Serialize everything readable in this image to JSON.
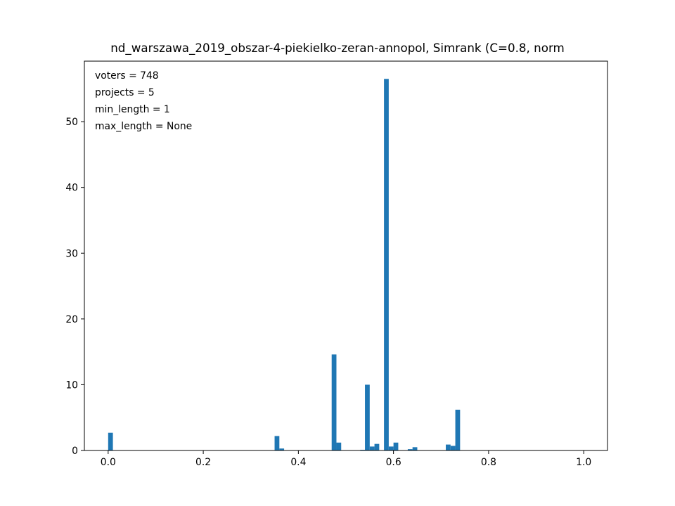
{
  "chart_data": {
    "type": "bar",
    "title": "nd_warszawa_2019_obszar-4-piekielko-zeran-annopol, Simrank (C=0.8, norm",
    "xlabel": "",
    "ylabel": "",
    "xlim": [
      -0.05,
      1.05
    ],
    "ylim": [
      0,
      59.2
    ],
    "grid": false,
    "bar_color": "#1f77b4",
    "bin_width": 0.01,
    "xticks": [
      "0.0",
      "0.2",
      "0.4",
      "0.6",
      "0.8",
      "1.0"
    ],
    "xtick_values": [
      0.0,
      0.2,
      0.4,
      0.6,
      0.8,
      1.0
    ],
    "yticks": [
      "0",
      "10",
      "20",
      "30",
      "40",
      "50"
    ],
    "ytick_values": [
      0,
      10,
      20,
      30,
      40,
      50
    ],
    "annotations": [
      "voters = 748",
      "projects = 5",
      "min_length = 1",
      "max_length = None"
    ],
    "bins": [
      {
        "x": 0.0,
        "value": 2.7
      },
      {
        "x": 0.35,
        "value": 2.2
      },
      {
        "x": 0.36,
        "value": 0.3
      },
      {
        "x": 0.47,
        "value": 14.6
      },
      {
        "x": 0.48,
        "value": 1.2
      },
      {
        "x": 0.53,
        "value": 0.1
      },
      {
        "x": 0.54,
        "value": 10.0
      },
      {
        "x": 0.55,
        "value": 0.6
      },
      {
        "x": 0.56,
        "value": 1.0
      },
      {
        "x": 0.58,
        "value": 56.5
      },
      {
        "x": 0.59,
        "value": 0.6
      },
      {
        "x": 0.6,
        "value": 1.2
      },
      {
        "x": 0.63,
        "value": 0.2
      },
      {
        "x": 0.64,
        "value": 0.5
      },
      {
        "x": 0.71,
        "value": 0.9
      },
      {
        "x": 0.72,
        "value": 0.7
      },
      {
        "x": 0.73,
        "value": 6.2
      }
    ]
  }
}
